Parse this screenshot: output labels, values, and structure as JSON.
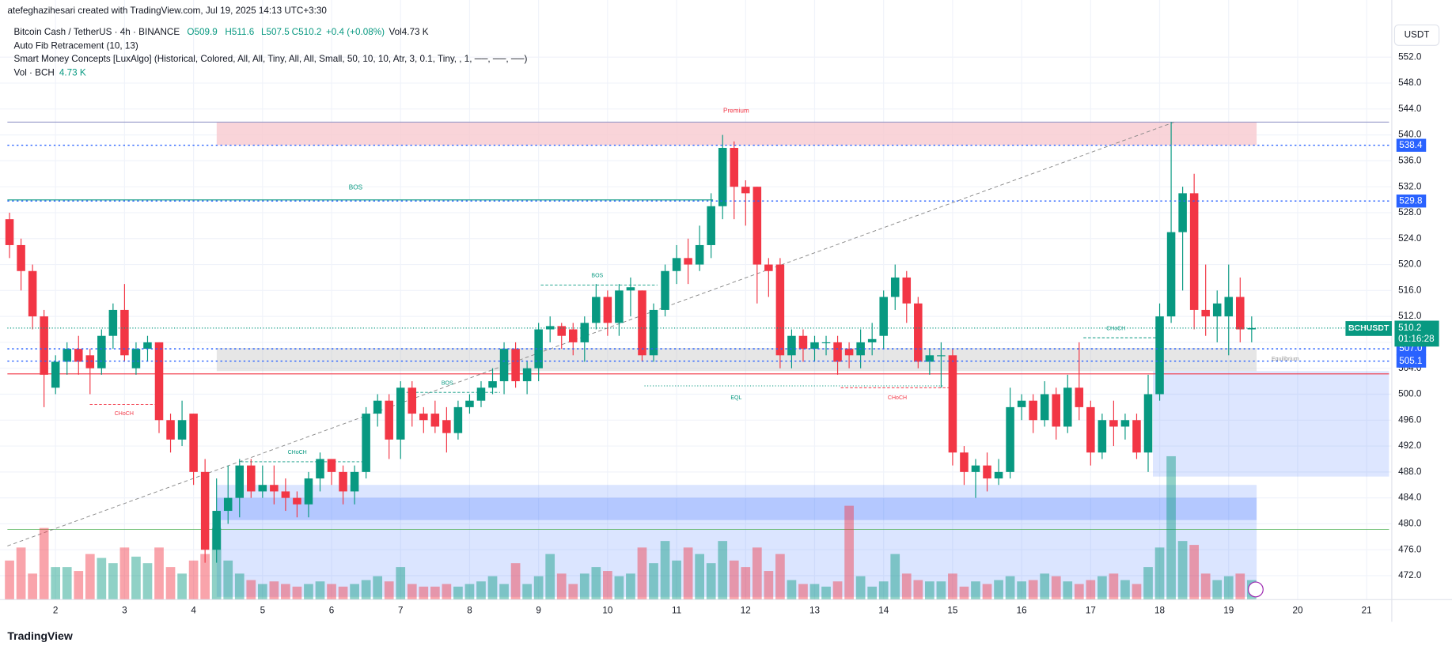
{
  "header": {
    "credit": "atefeghazihesari created with TradingView.com, Jul 19, 2025 14:13 UTC+3:30",
    "symbol": "Bitcoin Cash / TetherUS · 4h · BINANCE",
    "ohlc": [
      "O509.9",
      "H511.6",
      "L507.5",
      "C510.2"
    ],
    "change": "+0.4 (+0.08%)",
    "vol": "Vol4.73 K",
    "indicators": [
      "Auto Fib Retracement (10, 13)",
      "Smart Money Concepts [LuxAlgo] (Historical, Colored, All, All, Tiny, All, All, Small, 50, 10, 10, Atr, 3, 0.1, Tiny, , 1, ──, ──, ──)"
    ],
    "vol_label": "Vol · BCH",
    "vol_value": "4.73 K"
  },
  "currency": "USDT",
  "symbol_tag": "BCHUSDT",
  "footer": "TradingView",
  "chart_data": {
    "type": "candlestick",
    "up_color": "#089981",
    "down_color": "#f23645",
    "open": [
      527,
      523,
      519,
      512,
      501,
      505,
      507,
      506,
      504,
      509,
      513,
      504,
      507,
      508,
      496,
      493,
      497,
      488,
      476,
      482,
      484,
      489,
      485,
      486,
      485,
      484,
      483,
      487,
      490,
      488,
      485,
      488,
      497,
      499,
      493,
      501,
      497,
      497,
      496,
      494,
      498,
      499,
      501,
      502,
      507,
      502,
      504,
      510,
      510.5,
      510,
      508,
      511,
      515,
      511,
      516,
      516,
      506,
      513,
      519,
      521,
      520,
      523,
      529,
      538,
      532,
      532,
      520,
      520,
      506,
      509,
      507,
      508,
      508,
      507,
      506,
      508,
      509,
      515,
      518,
      514,
      505,
      506,
      506,
      491,
      488,
      489,
      487,
      488,
      498,
      499,
      496,
      500,
      495,
      501,
      498,
      491,
      496,
      495,
      496,
      491,
      500,
      512,
      525,
      531,
      513,
      512,
      512,
      515,
      510
    ],
    "high": [
      528,
      524,
      520,
      513,
      506,
      508,
      509,
      507,
      510,
      514,
      517,
      508,
      509,
      508,
      497,
      499,
      497,
      490,
      487,
      489,
      490,
      490,
      489,
      489,
      487,
      485,
      488,
      491,
      490,
      489,
      489,
      498,
      500,
      500,
      502,
      502,
      498,
      499,
      498,
      499,
      500,
      502,
      504,
      508,
      508,
      505,
      511,
      512,
      511,
      511,
      512,
      517,
      516,
      517,
      518,
      516,
      514,
      520,
      523,
      524,
      526,
      531,
      540,
      539,
      533,
      532,
      521,
      521,
      510,
      510,
      509,
      509,
      509,
      508,
      510,
      511,
      516,
      520,
      519,
      515,
      507,
      508,
      507,
      492,
      490,
      491,
      490,
      501,
      500,
      500,
      502,
      501,
      503,
      508,
      499,
      497,
      499,
      497,
      497,
      503,
      514,
      542,
      532,
      534,
      520,
      516,
      520,
      518,
      512
    ],
    "low": [
      521,
      516,
      510,
      498,
      500,
      503,
      503,
      500,
      503,
      507,
      505,
      503,
      505,
      494,
      491,
      492,
      486,
      474,
      474,
      480,
      481,
      484,
      484,
      483,
      482,
      481,
      481,
      485,
      486,
      483,
      483,
      487,
      495,
      490,
      490,
      495,
      494,
      494,
      491,
      493,
      497,
      498,
      500,
      500,
      501,
      500,
      502,
      508,
      507,
      506,
      505,
      510,
      509,
      509,
      512,
      505,
      505,
      512,
      517,
      517,
      519,
      521,
      527,
      527,
      526,
      514,
      515,
      504,
      504,
      505,
      505,
      506,
      503,
      504,
      504,
      506,
      507,
      513,
      511,
      504,
      503,
      501,
      489,
      486,
      484,
      485,
      486,
      487,
      496,
      494,
      495,
      493,
      494,
      496,
      489,
      490,
      492,
      493,
      490,
      488,
      499,
      511,
      516,
      510,
      509,
      508,
      506,
      508,
      508
    ],
    "close": [
      523,
      519,
      512,
      503,
      505,
      507,
      505,
      504,
      509,
      513,
      506,
      507,
      508,
      496,
      493,
      496,
      488,
      476,
      482,
      484,
      489,
      485,
      486,
      485,
      484,
      483,
      487,
      490,
      488,
      485,
      488,
      497,
      499,
      493,
      501,
      497,
      496,
      495,
      494,
      498,
      499,
      501,
      502,
      507,
      502,
      504,
      510,
      510.5,
      509,
      508,
      511,
      515,
      511,
      516,
      516.5,
      506,
      513,
      519,
      521,
      520,
      523,
      529,
      538,
      532,
      531,
      520,
      519,
      506,
      509,
      507,
      508,
      508,
      505,
      506,
      508,
      508.5,
      515,
      518,
      514,
      505,
      506,
      506,
      491,
      488,
      489,
      487,
      488,
      498,
      499,
      496,
      500,
      495,
      501,
      498,
      491,
      496,
      495,
      496,
      491,
      500,
      512,
      525,
      531,
      513,
      512,
      514,
      515,
      510,
      510.2
    ],
    "volume": [
      30,
      40,
      20,
      55,
      25,
      25,
      22,
      35,
      32,
      28,
      40,
      33,
      28,
      40,
      25,
      20,
      30,
      35,
      55,
      30,
      20,
      15,
      12,
      14,
      12,
      10,
      12,
      14,
      12,
      10,
      12,
      15,
      18,
      14,
      25,
      12,
      10,
      10,
      12,
      10,
      12,
      14,
      18,
      12,
      28,
      12,
      18,
      35,
      20,
      12,
      20,
      25,
      22,
      18,
      20,
      40,
      28,
      45,
      30,
      40,
      35,
      28,
      45,
      30,
      25,
      40,
      22,
      35,
      15,
      12,
      12,
      10,
      14,
      72,
      18,
      10,
      14,
      35,
      20,
      15,
      14,
      14,
      20,
      10,
      14,
      12,
      15,
      18,
      14,
      15,
      20,
      18,
      14,
      12,
      15,
      18,
      20,
      15,
      12,
      25,
      40,
      110,
      45,
      42,
      20,
      15,
      18,
      20,
      15
    ],
    "xticks": [
      2,
      3,
      4,
      5,
      6,
      7,
      8,
      9,
      10,
      11,
      12,
      13,
      14,
      15,
      16,
      17,
      18,
      19,
      20,
      21
    ],
    "ylim": [
      468.3,
      559.1
    ],
    "yticks": [
      {
        "value": 472,
        "label": "472.0"
      },
      {
        "value": 476,
        "label": "476.0"
      },
      {
        "value": 480,
        "label": "480.0"
      },
      {
        "value": 484,
        "label": "484.0"
      },
      {
        "value": 488,
        "label": "488.0"
      },
      {
        "value": 492,
        "label": "492.0"
      },
      {
        "value": 496,
        "label": "496.0"
      },
      {
        "value": 500,
        "label": "500.0"
      },
      {
        "value": 504,
        "label": "504.0"
      },
      {
        "value": 508,
        "label": "508.0"
      },
      {
        "value": 512,
        "label": "512.0"
      },
      {
        "value": 516,
        "label": "516.0"
      },
      {
        "value": 520,
        "label": "520.0"
      },
      {
        "value": 524,
        "label": "524.0"
      },
      {
        "value": 528,
        "label": "528.0"
      },
      {
        "value": 532,
        "label": "532.0"
      },
      {
        "value": 536,
        "label": "536.0"
      },
      {
        "value": 540,
        "label": "540.0"
      },
      {
        "value": 544,
        "label": "544.0"
      },
      {
        "value": 548,
        "label": "548.0"
      },
      {
        "value": 552,
        "label": "552.0"
      }
    ],
    "grid": true,
    "levels": [
      {
        "value": 538.4,
        "label": "538.4"
      },
      {
        "value": 529.8,
        "label": "529.8"
      },
      {
        "value": 507.0,
        "label": "507.0"
      },
      {
        "value": 505.1,
        "label": "505.1"
      }
    ],
    "current": {
      "value": 510.2,
      "label": "510.2",
      "countdown": "01:16:28"
    },
    "annotations": [
      "Premium",
      "BOS",
      "BOS",
      "BOS",
      "CHoCH",
      "CHoCH",
      "EQL",
      "CHoCH",
      "CHoCH",
      "Equilibrium"
    ]
  }
}
